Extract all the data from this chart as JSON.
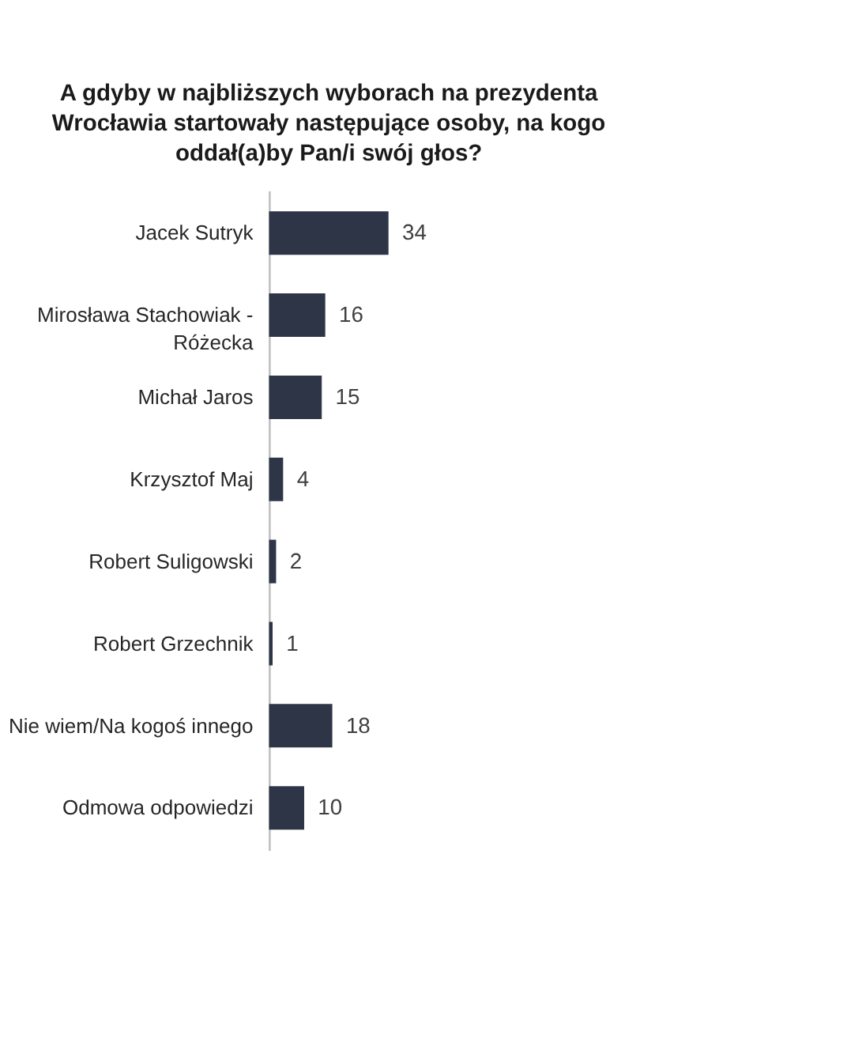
{
  "chart_data": {
    "type": "bar",
    "orientation": "horizontal",
    "title": "A gdyby w najbliższych wyborach na prezydenta\nWrocławia startowały następujące osoby, na kogo\noddał(a)by Pan/i swój głos?",
    "categories": [
      "Jacek Sutryk",
      "Mirosława Stachowiak -\nRóżecka",
      "Michał Jaros",
      "Krzysztof Maj",
      "Robert Suligowski",
      "Robert Grzechnik",
      "Nie wiem/Na kogoś innego",
      "Odmowa odpowiedzi"
    ],
    "values": [
      34,
      16,
      15,
      4,
      2,
      1,
      18,
      10
    ],
    "color": "#2e3547",
    "data_labels": true,
    "tick_labels": "y"
  }
}
